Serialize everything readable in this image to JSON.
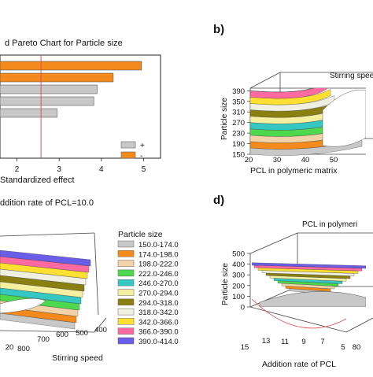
{
  "panel_labels": {
    "b": "b)",
    "d": "d)"
  },
  "chart_data": [
    {
      "id": "a",
      "type": "bar",
      "orientation": "horizontal",
      "title": "d Pareto Chart for Particle size",
      "xlabel": "Standardized effect",
      "xticks": [
        "2",
        "3",
        "4",
        "5"
      ],
      "xlim": [
        1.6,
        5.4
      ],
      "categories": [
        "",
        "",
        "",
        "",
        ""
      ],
      "values": [
        4.95,
        4.28,
        3.9,
        3.82,
        2.95
      ],
      "bar_colors": [
        "#f38a1b",
        "#f38a1b",
        "#c8c8c8",
        "#c8c8c8",
        "#c8c8c8"
      ],
      "reference_line": 2.57,
      "legend": [
        {
          "label": "+",
          "color": "#c8c8c8"
        },
        {
          "label": "-",
          "color": "#f38a1b"
        }
      ],
      "legend_position": "bottom-right"
    },
    {
      "id": "b",
      "type": "surface",
      "title": "Stirring speed",
      "xlabel": "PCL in polymeric matrix",
      "ylabel": "Particle size",
      "xticks": [
        "20",
        "30",
        "40",
        "50"
      ],
      "zticks": [
        "150",
        "190",
        "230",
        "270",
        "310",
        "350",
        "390"
      ],
      "zlim": [
        150,
        400
      ]
    },
    {
      "id": "c",
      "type": "surface",
      "title": "ddition rate of PCL=10.0",
      "xlabel": "Stirring speed",
      "xticks": [
        "20",
        "800",
        "700",
        "600",
        "500",
        "400"
      ],
      "legend_title": "Particle size",
      "legend": [
        {
          "label": "150.0-174.0",
          "color": "#c8c8c8"
        },
        {
          "label": "174.0-198.0",
          "color": "#f38a1b"
        },
        {
          "label": "198.0-222.0",
          "color": "#f2d3a8"
        },
        {
          "label": "222.0-246.0",
          "color": "#4dd84d"
        },
        {
          "label": "246.0-270.0",
          "color": "#35c7c2"
        },
        {
          "label": "270.0-294.0",
          "color": "#f5f0a0"
        },
        {
          "label": "294.0-318.0",
          "color": "#8a7f10"
        },
        {
          "label": "318.0-342.0",
          "color": "#f0f0e0"
        },
        {
          "label": "342.0-366.0",
          "color": "#ffe030"
        },
        {
          "label": "366.0-390.0",
          "color": "#ff6aa0"
        },
        {
          "label": "390.0-414.0",
          "color": "#6a5de8"
        }
      ],
      "legend_position": "right"
    },
    {
      "id": "d",
      "type": "surface",
      "title": "PCL in polymeri",
      "xlabel": "Addition rate of PCL",
      "ylabel": "Particle size",
      "xticks": [
        "15",
        "13",
        "11",
        "9",
        "7",
        "5",
        "80"
      ],
      "zticks": [
        "0",
        "100",
        "200",
        "300",
        "400",
        "500"
      ],
      "zlim": [
        0,
        500
      ]
    }
  ]
}
